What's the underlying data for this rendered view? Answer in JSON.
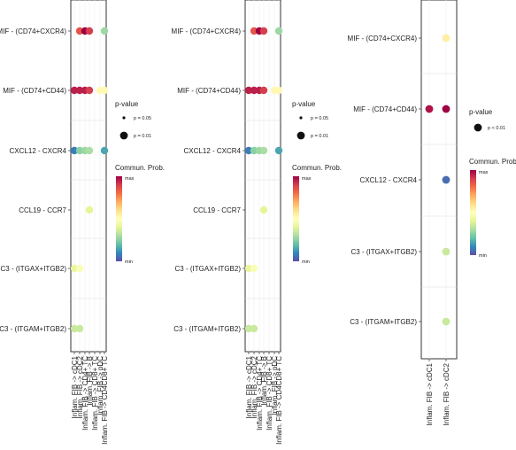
{
  "chart_data": [
    {
      "type": "scatter",
      "y_categories": [
        "MIF - (CD74+CXCR4)",
        "MIF - (CD74+CD44)",
        "CXCL12 - CXCR4",
        "CCL19 - CCR7",
        "C3 - (ITGAX+ITGB2)",
        "C3 - (ITGAM+ITGB2)"
      ],
      "x_categories": [
        "Inflam. FIB -> cDC1",
        "Inflam. FIB -> cDC2",
        "Inflam. FIB -> CD4+ TC",
        "Inflam. FIB -> B",
        "Inflam. FIB -> CD8+ TC",
        "Inflam. FIB -> pDC",
        "Inflam. FIB -> CD4CD8+ TC"
      ],
      "points": [
        {
          "x": 1,
          "y": 0,
          "prob": 0.85,
          "pval": 0.01
        },
        {
          "x": 2,
          "y": 0,
          "prob": 1.0,
          "pval": 0.01
        },
        {
          "x": 3,
          "y": 0,
          "prob": 0.9,
          "pval": 0.01
        },
        {
          "x": 6,
          "y": 0,
          "prob": 0.28,
          "pval": 0.01
        },
        {
          "x": 0,
          "y": 1,
          "prob": 0.95,
          "pval": 0.01
        },
        {
          "x": 1,
          "y": 1,
          "prob": 0.95,
          "pval": 0.01
        },
        {
          "x": 2,
          "y": 1,
          "prob": 0.95,
          "pval": 0.01
        },
        {
          "x": 3,
          "y": 1,
          "prob": 0.9,
          "pval": 0.01
        },
        {
          "x": 5,
          "y": 1,
          "prob": 0.52,
          "pval": 0.01
        },
        {
          "x": 6,
          "y": 1,
          "prob": 0.52,
          "pval": 0.01
        },
        {
          "x": 0,
          "y": 2,
          "prob": 0.08,
          "pval": 0.01
        },
        {
          "x": 1,
          "y": 2,
          "prob": 0.25,
          "pval": 0.01
        },
        {
          "x": 2,
          "y": 2,
          "prob": 0.28,
          "pval": 0.01
        },
        {
          "x": 3,
          "y": 2,
          "prob": 0.3,
          "pval": 0.01
        },
        {
          "x": 6,
          "y": 2,
          "prob": 0.15,
          "pval": 0.01
        },
        {
          "x": 3,
          "y": 3,
          "prob": 0.4,
          "pval": 0.01
        },
        {
          "x": 0,
          "y": 4,
          "prob": 0.42,
          "pval": 0.01
        },
        {
          "x": 1,
          "y": 4,
          "prob": 0.48,
          "pval": 0.01
        },
        {
          "x": 0,
          "y": 5,
          "prob": 0.35,
          "pval": 0.01
        },
        {
          "x": 1,
          "y": 5,
          "prob": 0.35,
          "pval": 0.01
        }
      ],
      "legend": {
        "pvalue_title": "p-value",
        "pvalue_levels": [
          "p = 0.05",
          "p = 0.01"
        ],
        "color_title": "Commun. Prob.",
        "color_max": "max",
        "color_min": "min",
        "placement": "right"
      }
    },
    {
      "type": "scatter",
      "y_categories": [
        "MIF - (CD74+CXCR4)",
        "MIF - (CD74+CD44)",
        "CXCL12 - CXCR4",
        "CCL19 - CCR7",
        "C3 - (ITGAX+ITGB2)",
        "C3 - (ITGAM+ITGB2)"
      ],
      "x_categories": [
        "Inflam. FIB -> cDC1",
        "Inflam. FIB -> cDC2",
        "Inflam. FIB -> CD4+ TC",
        "Inflam. FIB -> B",
        "Inflam. FIB -> CD8+ TC",
        "Inflam. FIB -> pDC",
        "Inflam. FIB -> CD4CD8+ TC"
      ],
      "points": [
        {
          "x": 1,
          "y": 0,
          "prob": 0.85,
          "pval": 0.01
        },
        {
          "x": 2,
          "y": 0,
          "prob": 1.0,
          "pval": 0.01
        },
        {
          "x": 3,
          "y": 0,
          "prob": 0.9,
          "pval": 0.01
        },
        {
          "x": 6,
          "y": 0,
          "prob": 0.28,
          "pval": 0.01
        },
        {
          "x": 0,
          "y": 1,
          "prob": 0.95,
          "pval": 0.01
        },
        {
          "x": 1,
          "y": 1,
          "prob": 0.95,
          "pval": 0.01
        },
        {
          "x": 2,
          "y": 1,
          "prob": 0.95,
          "pval": 0.01
        },
        {
          "x": 3,
          "y": 1,
          "prob": 0.9,
          "pval": 0.01
        },
        {
          "x": 5,
          "y": 1,
          "prob": 0.52,
          "pval": 0.01
        },
        {
          "x": 6,
          "y": 1,
          "prob": 0.52,
          "pval": 0.01
        },
        {
          "x": 0,
          "y": 2,
          "prob": 0.08,
          "pval": 0.01
        },
        {
          "x": 1,
          "y": 2,
          "prob": 0.25,
          "pval": 0.01
        },
        {
          "x": 2,
          "y": 2,
          "prob": 0.28,
          "pval": 0.01
        },
        {
          "x": 3,
          "y": 2,
          "prob": 0.3,
          "pval": 0.01
        },
        {
          "x": 6,
          "y": 2,
          "prob": 0.15,
          "pval": 0.01
        },
        {
          "x": 3,
          "y": 3,
          "prob": 0.4,
          "pval": 0.01
        },
        {
          "x": 0,
          "y": 4,
          "prob": 0.42,
          "pval": 0.01
        },
        {
          "x": 1,
          "y": 4,
          "prob": 0.48,
          "pval": 0.01
        },
        {
          "x": 0,
          "y": 5,
          "prob": 0.35,
          "pval": 0.01
        },
        {
          "x": 1,
          "y": 5,
          "prob": 0.35,
          "pval": 0.01
        }
      ],
      "legend": {
        "pvalue_title": "p-value",
        "pvalue_levels": [
          "p = 0.05",
          "p = 0.01"
        ],
        "color_title": "Commun. Prob.",
        "color_max": "max",
        "color_min": "min",
        "placement": "right"
      }
    },
    {
      "type": "scatter",
      "y_categories": [
        "MIF - (CD74+CXCR4)",
        "MIF - (CD74+CD44)",
        "CXCL12 - CXCR4",
        "C3 - (ITGAX+ITGB2)",
        "C3 - (ITGAM+ITGB2)"
      ],
      "x_categories": [
        "Inflam. FIB -> cDC1",
        "Inflam. FIB -> cDC2"
      ],
      "points": [
        {
          "x": 1,
          "y": 0,
          "prob": 0.55,
          "pval": 0.01
        },
        {
          "x": 0,
          "y": 1,
          "prob": 0.97,
          "pval": 0.01
        },
        {
          "x": 1,
          "y": 1,
          "prob": 1.0,
          "pval": 0.01
        },
        {
          "x": 1,
          "y": 2,
          "prob": 0.05,
          "pval": 0.01
        },
        {
          "x": 1,
          "y": 3,
          "prob": 0.35,
          "pval": 0.01
        },
        {
          "x": 1,
          "y": 4,
          "prob": 0.35,
          "pval": 0.01
        }
      ],
      "legend": {
        "pvalue_title": "p-value",
        "pvalue_levels": [
          "p < 0.01"
        ],
        "color_title": "Commun. Prob.",
        "color_max": "max",
        "color_min": "min",
        "placement": "right"
      }
    }
  ]
}
